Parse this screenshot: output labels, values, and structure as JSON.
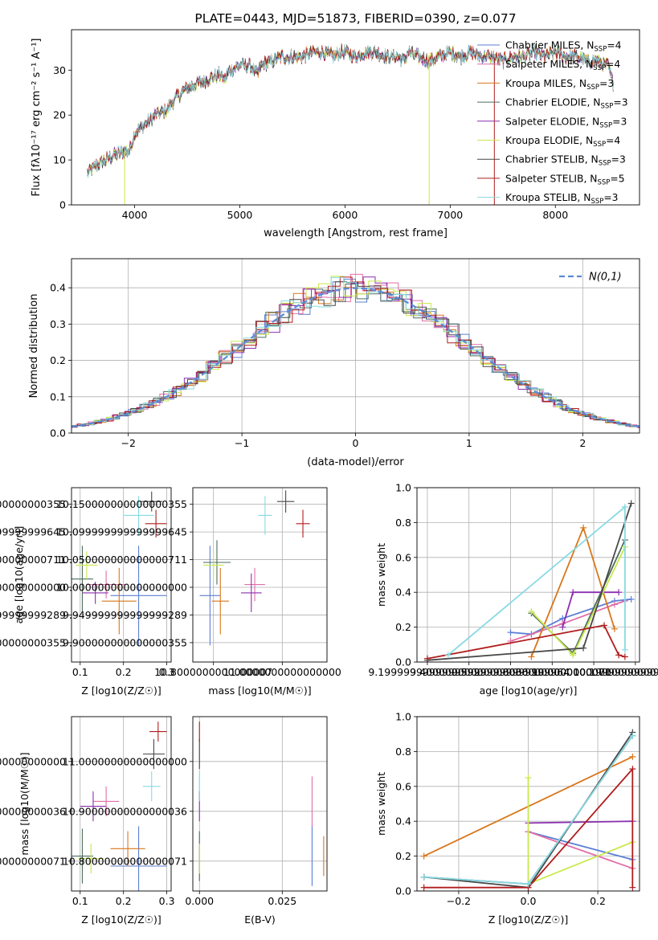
{
  "figure_title": "PLATE=0443, MJD=51873, FIBERID=0390, z=0.077",
  "colors": {
    "chabrier_miles": "#5b7fd6",
    "salpeter_miles": "#e06fa6",
    "kroupa_miles": "#d9761a",
    "chabrier_elodie": "#4d6e5c",
    "salpeter_elodie": "#8b2fb0",
    "kroupa_elodie": "#c9e84c",
    "chabrier_stelib": "#474747",
    "salpeter_stelib": "#b01d1d",
    "kroupa_stelib": "#87d9e3",
    "normal_curve": "#5a8ad6",
    "grid": "#b0b0b0"
  },
  "chart_data": [
    {
      "id": "spectrum",
      "type": "line",
      "title": "PLATE=0443, MJD=51873, FIBERID=0390, z=0.077",
      "xlabel": "wavelength [Angstrom, rest frame]",
      "ylabel": "Flux [fλ10⁻¹⁷ erg cm⁻² s⁻¹ A⁻¹]",
      "xlim": [
        3400,
        8800
      ],
      "ylim": [
        0,
        39
      ],
      "xticks": [
        4000,
        5000,
        6000,
        7000,
        8000
      ],
      "yticks": [
        0,
        10,
        20,
        30
      ],
      "grid": false,
      "legend_position": "top-right",
      "continuum": {
        "x": [
          3550,
          3650,
          3800,
          3900,
          3950,
          4000,
          4100,
          4200,
          4300,
          4400,
          4500,
          4600,
          4700,
          4800,
          4860,
          4900,
          5000,
          5100,
          5170,
          5200,
          5300,
          5400,
          5500,
          5600,
          5700,
          5800,
          5890,
          5950,
          6000,
          6100,
          6200,
          6300,
          6400,
          6500,
          6560,
          6600,
          6700,
          6800,
          6900,
          7000,
          7100,
          7200,
          7300,
          7400,
          7500,
          7600,
          7700,
          7800,
          7900,
          8000,
          8100,
          8200,
          8300,
          8400,
          8500,
          8550
        ],
        "y": [
          7,
          9,
          11,
          12,
          12,
          16,
          18,
          20,
          21,
          24,
          26,
          27,
          28,
          29,
          28,
          30,
          31,
          31,
          29,
          31,
          32,
          33,
          33,
          33,
          34,
          34,
          33,
          34,
          34,
          33,
          34,
          34,
          33,
          33,
          32,
          34,
          33,
          32,
          33,
          34,
          33,
          34,
          33,
          33,
          32,
          33,
          33,
          34,
          33,
          34,
          33,
          33,
          32,
          32,
          31,
          27
        ]
      },
      "series": [
        {
          "name": "Chabrier MILES, N_SSP=4",
          "label_base": "Chabrier MILES, N",
          "label_value": "=4",
          "color_key": "chabrier_miles"
        },
        {
          "name": "Salpeter MILES, N_SSP=4",
          "label_base": "Salpeter MILES, N",
          "label_value": "=4",
          "color_key": "salpeter_miles"
        },
        {
          "name": "Kroupa MILES, N_SSP=3",
          "label_base": "Kroupa MILES, N",
          "label_value": "=3",
          "color_key": "kroupa_miles"
        },
        {
          "name": "Chabrier ELODIE, N_SSP=3",
          "label_base": "Chabrier ELODIE, N",
          "label_value": "=3",
          "color_key": "chabrier_elodie"
        },
        {
          "name": "Salpeter ELODIE, N_SSP=3",
          "label_base": "Salpeter ELODIE, N",
          "label_value": "=3",
          "color_key": "salpeter_elodie"
        },
        {
          "name": "Kroupa ELODIE, N_SSP=4",
          "label_base": "Kroupa ELODIE, N",
          "label_value": "=4",
          "color_key": "kroupa_elodie"
        },
        {
          "name": "Chabrier STELIB, N_SSP=3",
          "label_base": "Chabrier STELIB, N",
          "label_value": "=3",
          "color_key": "chabrier_stelib"
        },
        {
          "name": "Salpeter STELIB, N_SSP=5",
          "label_base": "Salpeter STELIB, N",
          "label_value": "=5",
          "color_key": "salpeter_stelib"
        },
        {
          "name": "Kroupa STELIB, N_SSP=3",
          "label_base": "Kroupa STELIB, N",
          "label_value": "=3",
          "color_key": "kroupa_stelib"
        }
      ],
      "legend_subscript": "SSP",
      "spikes": [
        {
          "x": 3905,
          "y_low": 0,
          "color_key": "kroupa_elodie"
        },
        {
          "x": 6800,
          "y_low": 0,
          "color_key": "kroupa_elodie"
        },
        {
          "x": 7420,
          "y_low": 0,
          "color_key": "salpeter_stelib"
        }
      ]
    },
    {
      "id": "residuals",
      "type": "line",
      "xlabel": "(data-model)/error",
      "ylabel": "Normed distribution",
      "xlim": [
        -2.5,
        2.5
      ],
      "ylim": [
        0,
        0.48
      ],
      "xticks": [
        -2,
        -1,
        0,
        1,
        2
      ],
      "yticks": [
        0.0,
        0.1,
        0.2,
        0.3,
        0.4
      ],
      "grid": true,
      "legend_position": "top-right",
      "normal_label": "N(0,1)",
      "normal_mean": 0,
      "normal_sigma": 1
    },
    {
      "id": "age_vs_z",
      "type": "scatter",
      "xlabel": "Z [log10(Z/Z☉)]",
      "ylabel": "age [log10(age/yr)]",
      "xlim": [
        0.08,
        0.31
      ],
      "ylim": [
        9.865,
        10.18
      ],
      "xticks": [
        0.1,
        0.2,
        0.3
      ],
      "yticks": [
        9.9,
        9.95,
        10.0,
        10.05,
        10.1,
        10.15
      ],
      "grid": true,
      "points": [
        {
          "color_key": "chabrier_miles",
          "x": 0.235,
          "xerr": 0.065,
          "y": 9.985,
          "yerr": 0.09
        },
        {
          "color_key": "salpeter_miles",
          "x": 0.16,
          "xerr": 0.045,
          "y": 10.005,
          "yerr": 0.025
        },
        {
          "color_key": "kroupa_miles",
          "x": 0.19,
          "xerr": 0.04,
          "y": 9.975,
          "yerr": 0.06
        },
        {
          "color_key": "chabrier_elodie",
          "x": 0.105,
          "xerr": 0.025,
          "y": 10.015,
          "yerr": 0.06
        },
        {
          "color_key": "salpeter_elodie",
          "x": 0.135,
          "xerr": 0.03,
          "y": 9.99,
          "yerr": 0.02
        },
        {
          "color_key": "kroupa_elodie",
          "x": 0.115,
          "xerr": 0.025,
          "y": 10.04,
          "yerr": 0.025
        },
        {
          "color_key": "chabrier_stelib",
          "x": 0.265,
          "xerr": 0.025,
          "y": 10.155,
          "yerr": 0.018
        },
        {
          "color_key": "salpeter_stelib",
          "x": 0.275,
          "xerr": 0.025,
          "y": 10.115,
          "yerr": 0.025
        },
        {
          "color_key": "kroupa_stelib",
          "x": 0.235,
          "xerr": 0.035,
          "y": 10.13,
          "yerr": 0.035
        }
      ]
    },
    {
      "id": "age_vs_mass",
      "type": "scatter",
      "xlabel": "mass [log10(M/M☉)]",
      "ylabel": "",
      "xlim": [
        10.74,
        11.13
      ],
      "ylim": [
        9.865,
        10.18
      ],
      "xticks": [
        10.8,
        11.0
      ],
      "yticks": [
        9.9,
        9.95,
        10.0,
        10.05,
        10.1,
        10.15
      ],
      "grid": true,
      "points": [
        {
          "color_key": "chabrier_miles",
          "x": 10.79,
          "xerr": 0.03,
          "y": 9.985,
          "yerr": 0.09
        },
        {
          "color_key": "salpeter_miles",
          "x": 10.92,
          "xerr": 0.03,
          "y": 10.005,
          "yerr": 0.03
        },
        {
          "color_key": "kroupa_miles",
          "x": 10.82,
          "xerr": 0.025,
          "y": 9.975,
          "yerr": 0.06
        },
        {
          "color_key": "chabrier_elodie",
          "x": 10.81,
          "xerr": 0.04,
          "y": 10.045,
          "yerr": 0.04
        },
        {
          "color_key": "salpeter_elodie",
          "x": 10.91,
          "xerr": 0.03,
          "y": 9.99,
          "yerr": 0.035
        },
        {
          "color_key": "kroupa_elodie",
          "x": 10.8,
          "xerr": 0.03,
          "y": 10.04,
          "yerr": 0.025
        },
        {
          "color_key": "chabrier_stelib",
          "x": 11.01,
          "xerr": 0.025,
          "y": 10.155,
          "yerr": 0.02
        },
        {
          "color_key": "salpeter_stelib",
          "x": 11.06,
          "xerr": 0.02,
          "y": 10.115,
          "yerr": 0.025
        },
        {
          "color_key": "kroupa_stelib",
          "x": 10.95,
          "xerr": 0.02,
          "y": 10.13,
          "yerr": 0.035
        }
      ]
    },
    {
      "id": "weight_vs_age",
      "type": "line",
      "xlabel": "age [log10(age/yr)]",
      "ylabel": "mass weight",
      "xlim": [
        9.15,
        10.22
      ],
      "ylim": [
        0,
        1.0
      ],
      "xticks": [
        9.2,
        9.4,
        9.6,
        9.8,
        10.0,
        10.2
      ],
      "yticks": [
        0.0,
        0.2,
        0.4,
        0.6,
        0.8,
        1.0
      ],
      "grid": true,
      "series": [
        {
          "color_key": "chabrier_miles",
          "x": [
            9.6,
            9.7,
            9.85,
            10.1,
            10.18
          ],
          "y": [
            0.17,
            0.16,
            0.25,
            0.35,
            0.36
          ]
        },
        {
          "color_key": "salpeter_miles",
          "x": [
            9.6,
            9.85,
            10.1,
            10.15
          ],
          "y": [
            0.12,
            0.22,
            0.33,
            0.35
          ]
        },
        {
          "color_key": "kroupa_miles",
          "x": [
            9.7,
            9.95,
            10.1
          ],
          "y": [
            0.03,
            0.77,
            0.19
          ]
        },
        {
          "color_key": "chabrier_elodie",
          "x": [
            9.7,
            9.9,
            10.15
          ],
          "y": [
            0.28,
            0.05,
            0.7
          ]
        },
        {
          "color_key": "salpeter_elodie",
          "x": [
            9.85,
            9.9,
            10.12
          ],
          "y": [
            0.2,
            0.4,
            0.4
          ]
        },
        {
          "color_key": "kroupa_elodie",
          "x": [
            9.7,
            9.9,
            10.15
          ],
          "y": [
            0.29,
            0.04,
            0.66
          ]
        },
        {
          "color_key": "chabrier_stelib",
          "x": [
            9.2,
            9.95,
            10.18
          ],
          "y": [
            0.01,
            0.08,
            0.91
          ]
        },
        {
          "color_key": "salpeter_stelib",
          "x": [
            9.2,
            10.05,
            10.12,
            10.15
          ],
          "y": [
            0.02,
            0.21,
            0.04,
            0.03
          ]
        },
        {
          "color_key": "kroupa_stelib",
          "x": [
            9.3,
            10.15,
            10.15
          ],
          "y": [
            0.04,
            0.89,
            0.07
          ]
        }
      ]
    },
    {
      "id": "mass_vs_z",
      "type": "scatter",
      "xlabel": "Z [log10(Z/Z☉)]",
      "ylabel": "mass [log10(M/M☉)]",
      "xlim": [
        0.08,
        0.31
      ],
      "ylim": [
        10.74,
        11.09
      ],
      "xticks": [
        0.1,
        0.2,
        0.3
      ],
      "yticks": [
        10.8,
        10.9,
        11.0
      ],
      "grid": true,
      "points": [
        {
          "color_key": "chabrier_miles",
          "x": 0.235,
          "xerr": 0.065,
          "y": 10.79,
          "yerr": 0.08
        },
        {
          "color_key": "salpeter_miles",
          "x": 0.16,
          "xerr": 0.03,
          "y": 10.92,
          "yerr": 0.03
        },
        {
          "color_key": "kroupa_miles",
          "x": 0.21,
          "xerr": 0.04,
          "y": 10.825,
          "yerr": 0.035
        },
        {
          "color_key": "chabrier_elodie",
          "x": 0.105,
          "xerr": 0.025,
          "y": 10.81,
          "yerr": 0.055
        },
        {
          "color_key": "salpeter_elodie",
          "x": 0.13,
          "xerr": 0.03,
          "y": 10.91,
          "yerr": 0.03
        },
        {
          "color_key": "kroupa_elodie",
          "x": 0.125,
          "xerr": 0.03,
          "y": 10.805,
          "yerr": 0.03
        },
        {
          "color_key": "chabrier_stelib",
          "x": 0.27,
          "xerr": 0.025,
          "y": 11.015,
          "yerr": 0.03
        },
        {
          "color_key": "salpeter_stelib",
          "x": 0.28,
          "xerr": 0.02,
          "y": 11.06,
          "yerr": 0.02
        },
        {
          "color_key": "kroupa_stelib",
          "x": 0.265,
          "xerr": 0.02,
          "y": 10.95,
          "yerr": 0.03
        }
      ]
    },
    {
      "id": "mass_vs_ebv",
      "type": "scatter",
      "xlabel": "E(B-V)",
      "ylabel": "",
      "xlim": [
        -0.002,
        0.0385
      ],
      "ylim": [
        10.74,
        11.09
      ],
      "xticks": [
        0.0,
        0.025
      ],
      "yticks": [
        10.8,
        10.9,
        11.0
      ],
      "grid": true,
      "points": [
        {
          "color_key": "chabrier_miles",
          "x": 0.034,
          "xerr": 0,
          "y": 10.81,
          "yerr": 0.06
        },
        {
          "color_key": "salpeter_miles",
          "x": 0.034,
          "xerr": 0,
          "y": 10.92,
          "yerr": 0.05
        },
        {
          "color_key": "kroupa_miles",
          "x": 0.0375,
          "xerr": 0,
          "y": 10.81,
          "yerr": 0.04
        },
        {
          "color_key": "chabrier_elodie",
          "x": 0.0,
          "xerr": 0,
          "y": 10.81,
          "yerr": 0.05
        },
        {
          "color_key": "salpeter_elodie",
          "x": 0.0,
          "xerr": 0,
          "y": 10.91,
          "yerr": 0.03
        },
        {
          "color_key": "kroupa_elodie",
          "x": 0.0,
          "xerr": 0,
          "y": 10.805,
          "yerr": 0.03
        },
        {
          "color_key": "chabrier_stelib",
          "x": 0.0,
          "xerr": 0,
          "y": 11.015,
          "yerr": 0.03
        },
        {
          "color_key": "salpeter_stelib",
          "x": 0.0,
          "xerr": 0,
          "y": 11.06,
          "yerr": 0.02
        },
        {
          "color_key": "kroupa_stelib",
          "x": 0.0,
          "xerr": 0,
          "y": 10.95,
          "yerr": 0.03
        }
      ]
    },
    {
      "id": "weight_vs_z",
      "type": "line",
      "xlabel": "Z [log10(Z/Z☉)]",
      "ylabel": "mass weight",
      "xlim": [
        -0.32,
        0.32
      ],
      "ylim": [
        0,
        1.0
      ],
      "xticks": [
        -0.2,
        0.0,
        0.2
      ],
      "yticks": [
        0.0,
        0.2,
        0.4,
        0.6,
        0.8,
        1.0
      ],
      "grid": true,
      "series": [
        {
          "color_key": "chabrier_miles",
          "x": [
            0.0,
            0.3
          ],
          "y": [
            0.34,
            0.18
          ]
        },
        {
          "color_key": "salpeter_miles",
          "x": [
            0.0,
            0.3
          ],
          "y": [
            0.34,
            0.13
          ]
        },
        {
          "color_key": "kroupa_miles",
          "x": [
            -0.3,
            0.3
          ],
          "y": [
            0.2,
            0.77
          ]
        },
        {
          "color_key": "chabrier_elodie",
          "x": [
            -0.3,
            0.0,
            0.3
          ],
          "y": [
            0.08,
            0.04,
            0.89
          ]
        },
        {
          "color_key": "salpeter_elodie",
          "x": [
            0.0,
            0.3
          ],
          "y": [
            0.39,
            0.4
          ]
        },
        {
          "color_key": "kroupa_elodie",
          "x": [
            0.0,
            0.0,
            0.3
          ],
          "y": [
            0.65,
            0.04,
            0.28
          ]
        },
        {
          "color_key": "chabrier_stelib",
          "x": [
            -0.3,
            0.0,
            0.3
          ],
          "y": [
            0.08,
            0.02,
            0.91
          ]
        },
        {
          "color_key": "salpeter_stelib",
          "x": [
            -0.3,
            0.0,
            0.3,
            0.3
          ],
          "y": [
            0.02,
            0.02,
            0.7,
            0.02
          ]
        },
        {
          "color_key": "kroupa_stelib",
          "x": [
            -0.3,
            0.0,
            0.3
          ],
          "y": [
            0.08,
            0.04,
            0.89
          ]
        }
      ]
    }
  ]
}
